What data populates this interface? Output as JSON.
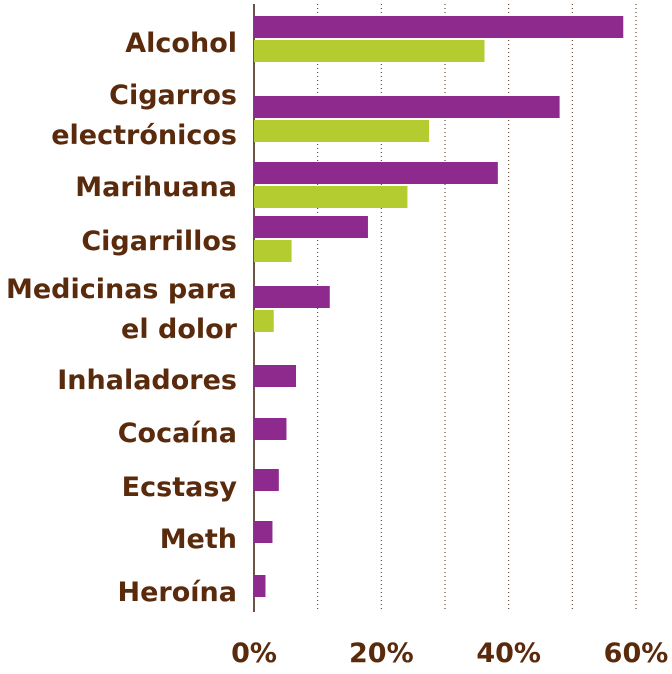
{
  "chart_data": {
    "type": "bar",
    "orientation": "horizontal",
    "categories": [
      [
        "Alcohol"
      ],
      [
        "Cigarros",
        "electrónicos"
      ],
      [
        "Marihuana"
      ],
      [
        "Cigarrillos"
      ],
      [
        "Medicinas para",
        "el dolor"
      ],
      [
        "Inhaladores"
      ],
      [
        "Cocaína"
      ],
      [
        "Ecstasy"
      ],
      [
        "Meth"
      ],
      [
        "Heroína"
      ]
    ],
    "series": [
      {
        "color": "#8e2a8e",
        "values": [
          58,
          48,
          38.3,
          17.9,
          11.9,
          6.6,
          5.1,
          3.9,
          2.9,
          1.8
        ]
      },
      {
        "color": "#b5cc30",
        "values": [
          36.2,
          27.5,
          24.1,
          5.9,
          3.1,
          null,
          null,
          null,
          null,
          null
        ]
      }
    ],
    "xlim": [
      0,
      60
    ],
    "xticks": [
      0,
      20,
      40,
      60
    ],
    "xtick_labels": [
      "0%",
      "20%",
      "40%",
      "60%"
    ],
    "grid": true,
    "legend": "none"
  }
}
